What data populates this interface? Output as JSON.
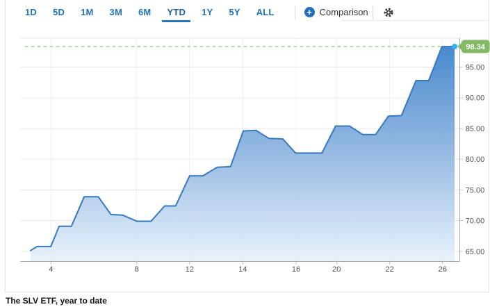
{
  "toolbar": {
    "ranges": [
      {
        "label": "1D",
        "active": false
      },
      {
        "label": "5D",
        "active": false
      },
      {
        "label": "1M",
        "active": false
      },
      {
        "label": "3M",
        "active": false
      },
      {
        "label": "6M",
        "active": false
      },
      {
        "label": "YTD",
        "active": true
      },
      {
        "label": "1Y",
        "active": false
      },
      {
        "label": "5Y",
        "active": false
      },
      {
        "label": "ALL",
        "active": false
      }
    ],
    "comparison_label": "Comparison"
  },
  "caption": "The SLV ETF, year to date",
  "chart_data": {
    "type": "area",
    "title": "The SLV ETF, year to date",
    "series_name": "SLV",
    "last_price": 98.34,
    "last_price_label": "98.34",
    "y_axis": {
      "ticks": [
        65,
        70,
        75,
        80,
        85,
        90,
        95
      ],
      "top_value": 99.69,
      "bottom_value": 63.36,
      "side": "right",
      "format": "2dp"
    },
    "x_axis": {
      "note": "day of month, trading days",
      "ticks": [
        {
          "label": "4",
          "pos": 0.0693
        },
        {
          "label": "8",
          "pos": 0.2645
        },
        {
          "label": "12",
          "pos": 0.3847
        },
        {
          "label": "14",
          "pos": 0.5059
        },
        {
          "label": "16",
          "pos": 0.6272
        },
        {
          "label": "20",
          "pos": 0.7194
        },
        {
          "label": "22",
          "pos": 0.8402
        },
        {
          "label": "26",
          "pos": 0.9605
        }
      ]
    },
    "points": [
      [
        0.023,
        65.15
      ],
      [
        0.038,
        65.8
      ],
      [
        0.069,
        65.8
      ],
      [
        0.088,
        69.1
      ],
      [
        0.116,
        69.1
      ],
      [
        0.145,
        73.9
      ],
      [
        0.177,
        73.9
      ],
      [
        0.206,
        71.0
      ],
      [
        0.233,
        70.9
      ],
      [
        0.265,
        69.9
      ],
      [
        0.297,
        69.9
      ],
      [
        0.328,
        72.4
      ],
      [
        0.353,
        72.4
      ],
      [
        0.385,
        77.3
      ],
      [
        0.415,
        77.3
      ],
      [
        0.448,
        78.7
      ],
      [
        0.478,
        78.8
      ],
      [
        0.507,
        84.6
      ],
      [
        0.536,
        84.7
      ],
      [
        0.565,
        83.4
      ],
      [
        0.597,
        83.3
      ],
      [
        0.626,
        81.0
      ],
      [
        0.686,
        81.0
      ],
      [
        0.717,
        85.4
      ],
      [
        0.749,
        85.4
      ],
      [
        0.779,
        84.0
      ],
      [
        0.808,
        84.0
      ],
      [
        0.837,
        87.0
      ],
      [
        0.867,
        87.1
      ],
      [
        0.9,
        92.8
      ],
      [
        0.929,
        92.8
      ],
      [
        0.959,
        98.3
      ],
      [
        0.988,
        98.34
      ]
    ],
    "grid": true,
    "colors": {
      "line": "#3579c0",
      "fill_top": "#3a81c9",
      "fill_mid": "#7fabdc",
      "fill_bottom": "#e7f1fb",
      "dashed_line": "#b9dcab",
      "marker_dot": "#2eb3e6",
      "badge": "#84ba66",
      "badge_text": "#ffffff",
      "gridline": "#e7e7e7",
      "axis": "#a9a9a9",
      "tick_label": "#505050"
    }
  }
}
